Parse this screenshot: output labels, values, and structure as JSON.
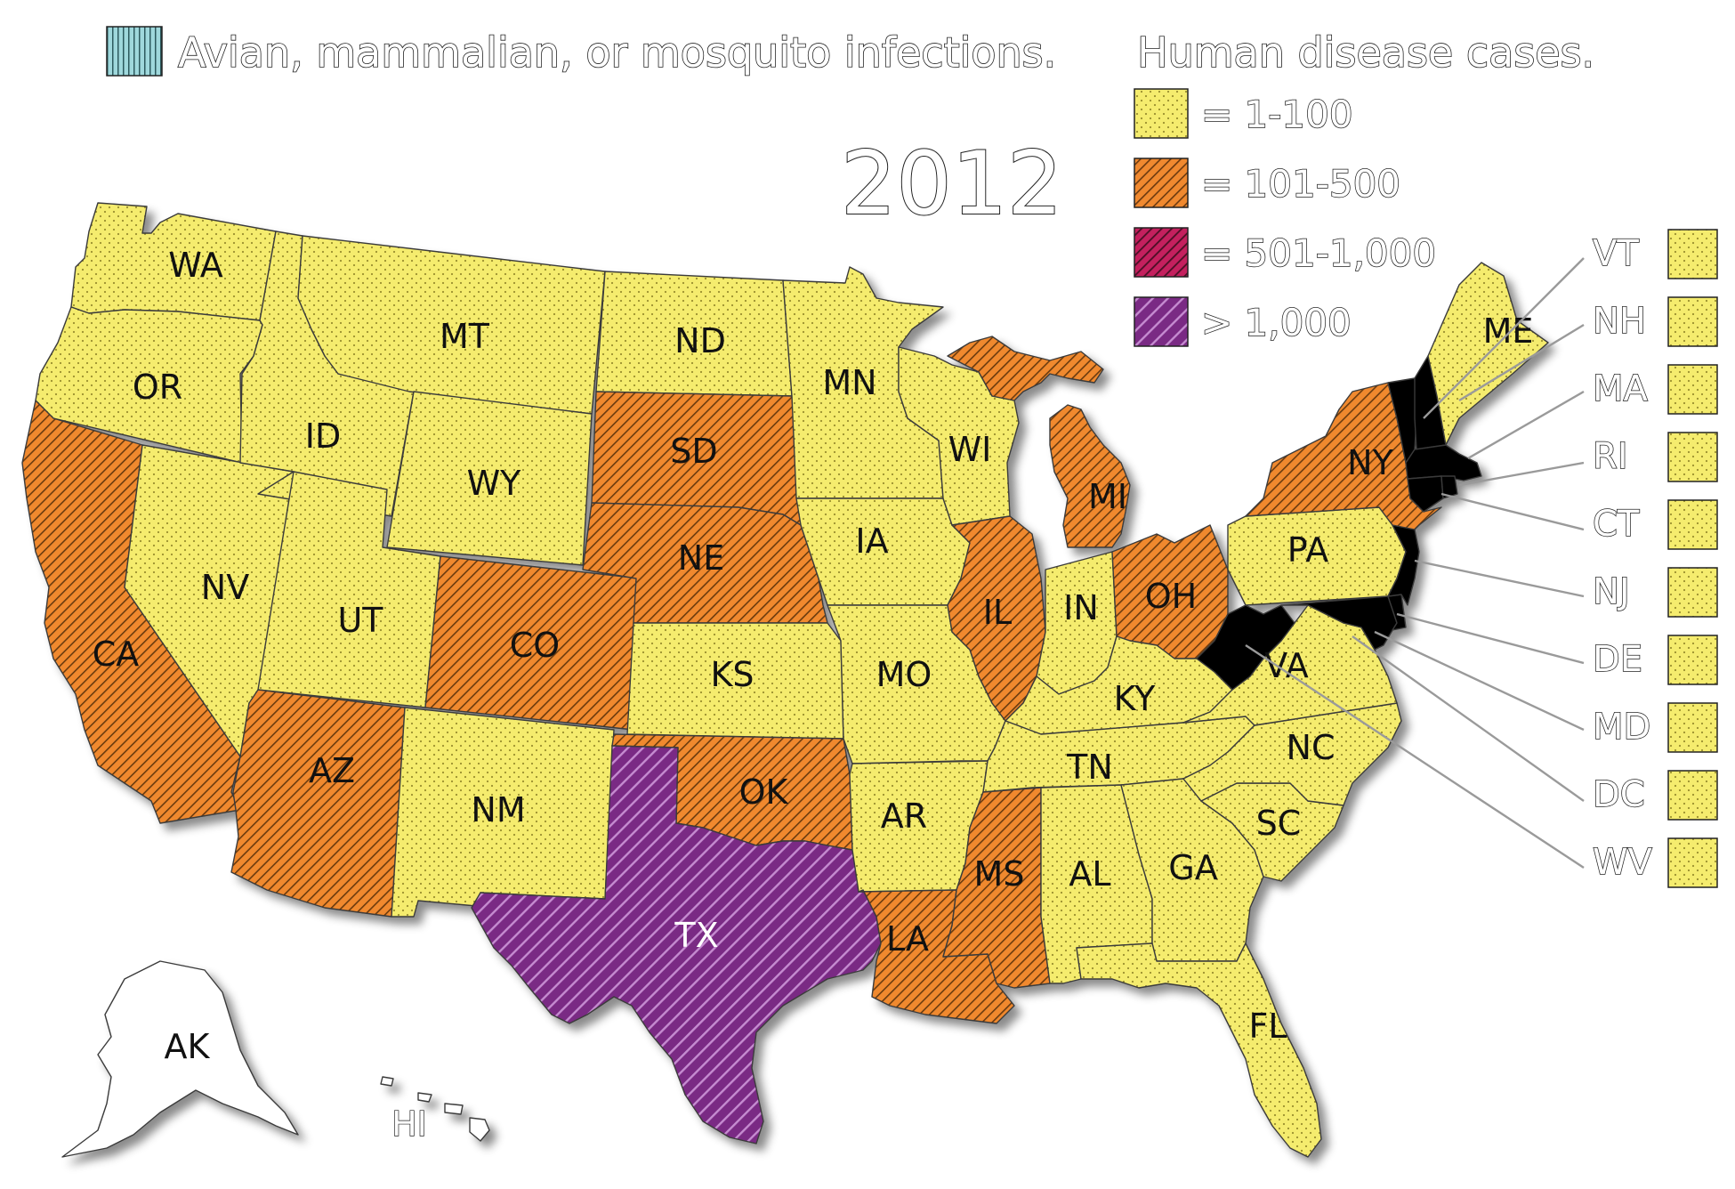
{
  "title": "2012",
  "legend": {
    "animal_label": "Avian, mammalian, or mosquito infections.",
    "human_heading": "Human disease cases.",
    "categories": [
      {
        "key": "c1",
        "label": "= 1-100",
        "color": "#f5ec6e"
      },
      {
        "key": "c2",
        "label": "= 101-500",
        "color": "#f0892f"
      },
      {
        "key": "c3",
        "label": "= 501-1,000",
        "color": "#c4205e"
      },
      {
        "key": "c4",
        "label": "> 1,000",
        "color": "#7a2a84"
      }
    ],
    "animal_color": "#9fd8dc"
  },
  "states": {
    "WA": {
      "label": "WA",
      "category": "c1"
    },
    "OR": {
      "label": "OR",
      "category": "c1"
    },
    "CA": {
      "label": "CA",
      "category": "c2"
    },
    "NV": {
      "label": "NV",
      "category": "c1"
    },
    "ID": {
      "label": "ID",
      "category": "c1"
    },
    "MT": {
      "label": "MT",
      "category": "c1"
    },
    "WY": {
      "label": "WY",
      "category": "c1"
    },
    "UT": {
      "label": "UT",
      "category": "c1"
    },
    "AZ": {
      "label": "AZ",
      "category": "c2"
    },
    "CO": {
      "label": "CO",
      "category": "c2"
    },
    "NM": {
      "label": "NM",
      "category": "c1"
    },
    "ND": {
      "label": "ND",
      "category": "c1"
    },
    "SD": {
      "label": "SD",
      "category": "c2"
    },
    "NE": {
      "label": "NE",
      "category": "c2"
    },
    "KS": {
      "label": "KS",
      "category": "c1"
    },
    "OK": {
      "label": "OK",
      "category": "c2"
    },
    "TX": {
      "label": "TX",
      "category": "c4"
    },
    "MN": {
      "label": "MN",
      "category": "c1"
    },
    "IA": {
      "label": "IA",
      "category": "c1"
    },
    "MO": {
      "label": "MO",
      "category": "c1"
    },
    "AR": {
      "label": "AR",
      "category": "c1"
    },
    "LA": {
      "label": "LA",
      "category": "c2"
    },
    "WI": {
      "label": "WI",
      "category": "c1"
    },
    "IL": {
      "label": "IL",
      "category": "c2"
    },
    "MI": {
      "label": "MI",
      "category": "c2"
    },
    "IN": {
      "label": "IN",
      "category": "c1"
    },
    "OH": {
      "label": "OH",
      "category": "c2"
    },
    "KY": {
      "label": "KY",
      "category": "c1"
    },
    "TN": {
      "label": "TN",
      "category": "c1"
    },
    "MS": {
      "label": "MS",
      "category": "c2"
    },
    "AL": {
      "label": "AL",
      "category": "c1"
    },
    "GA": {
      "label": "GA",
      "category": "c1"
    },
    "FL": {
      "label": "FL",
      "category": "c1"
    },
    "SC": {
      "label": "SC",
      "category": "c1"
    },
    "NC": {
      "label": "NC",
      "category": "c1"
    },
    "VA": {
      "label": "VA",
      "category": "c1"
    },
    "PA": {
      "label": "PA",
      "category": "c1"
    },
    "NY": {
      "label": "NY",
      "category": "c2"
    },
    "ME": {
      "label": "ME",
      "category": "c1"
    },
    "AK": {
      "label": "AK",
      "category": "none"
    },
    "HI": {
      "label": "HI",
      "category": "none"
    }
  },
  "small_states": [
    {
      "label": "VT",
      "category": "c1"
    },
    {
      "label": "NH",
      "category": "c1"
    },
    {
      "label": "MA",
      "category": "c1"
    },
    {
      "label": "RI",
      "category": "c1"
    },
    {
      "label": "CT",
      "category": "c1"
    },
    {
      "label": "NJ",
      "category": "c1"
    },
    {
      "label": "DE",
      "category": "c1"
    },
    {
      "label": "MD",
      "category": "c1"
    },
    {
      "label": "DC",
      "category": "c1"
    },
    {
      "label": "WV",
      "category": "c1"
    }
  ]
}
